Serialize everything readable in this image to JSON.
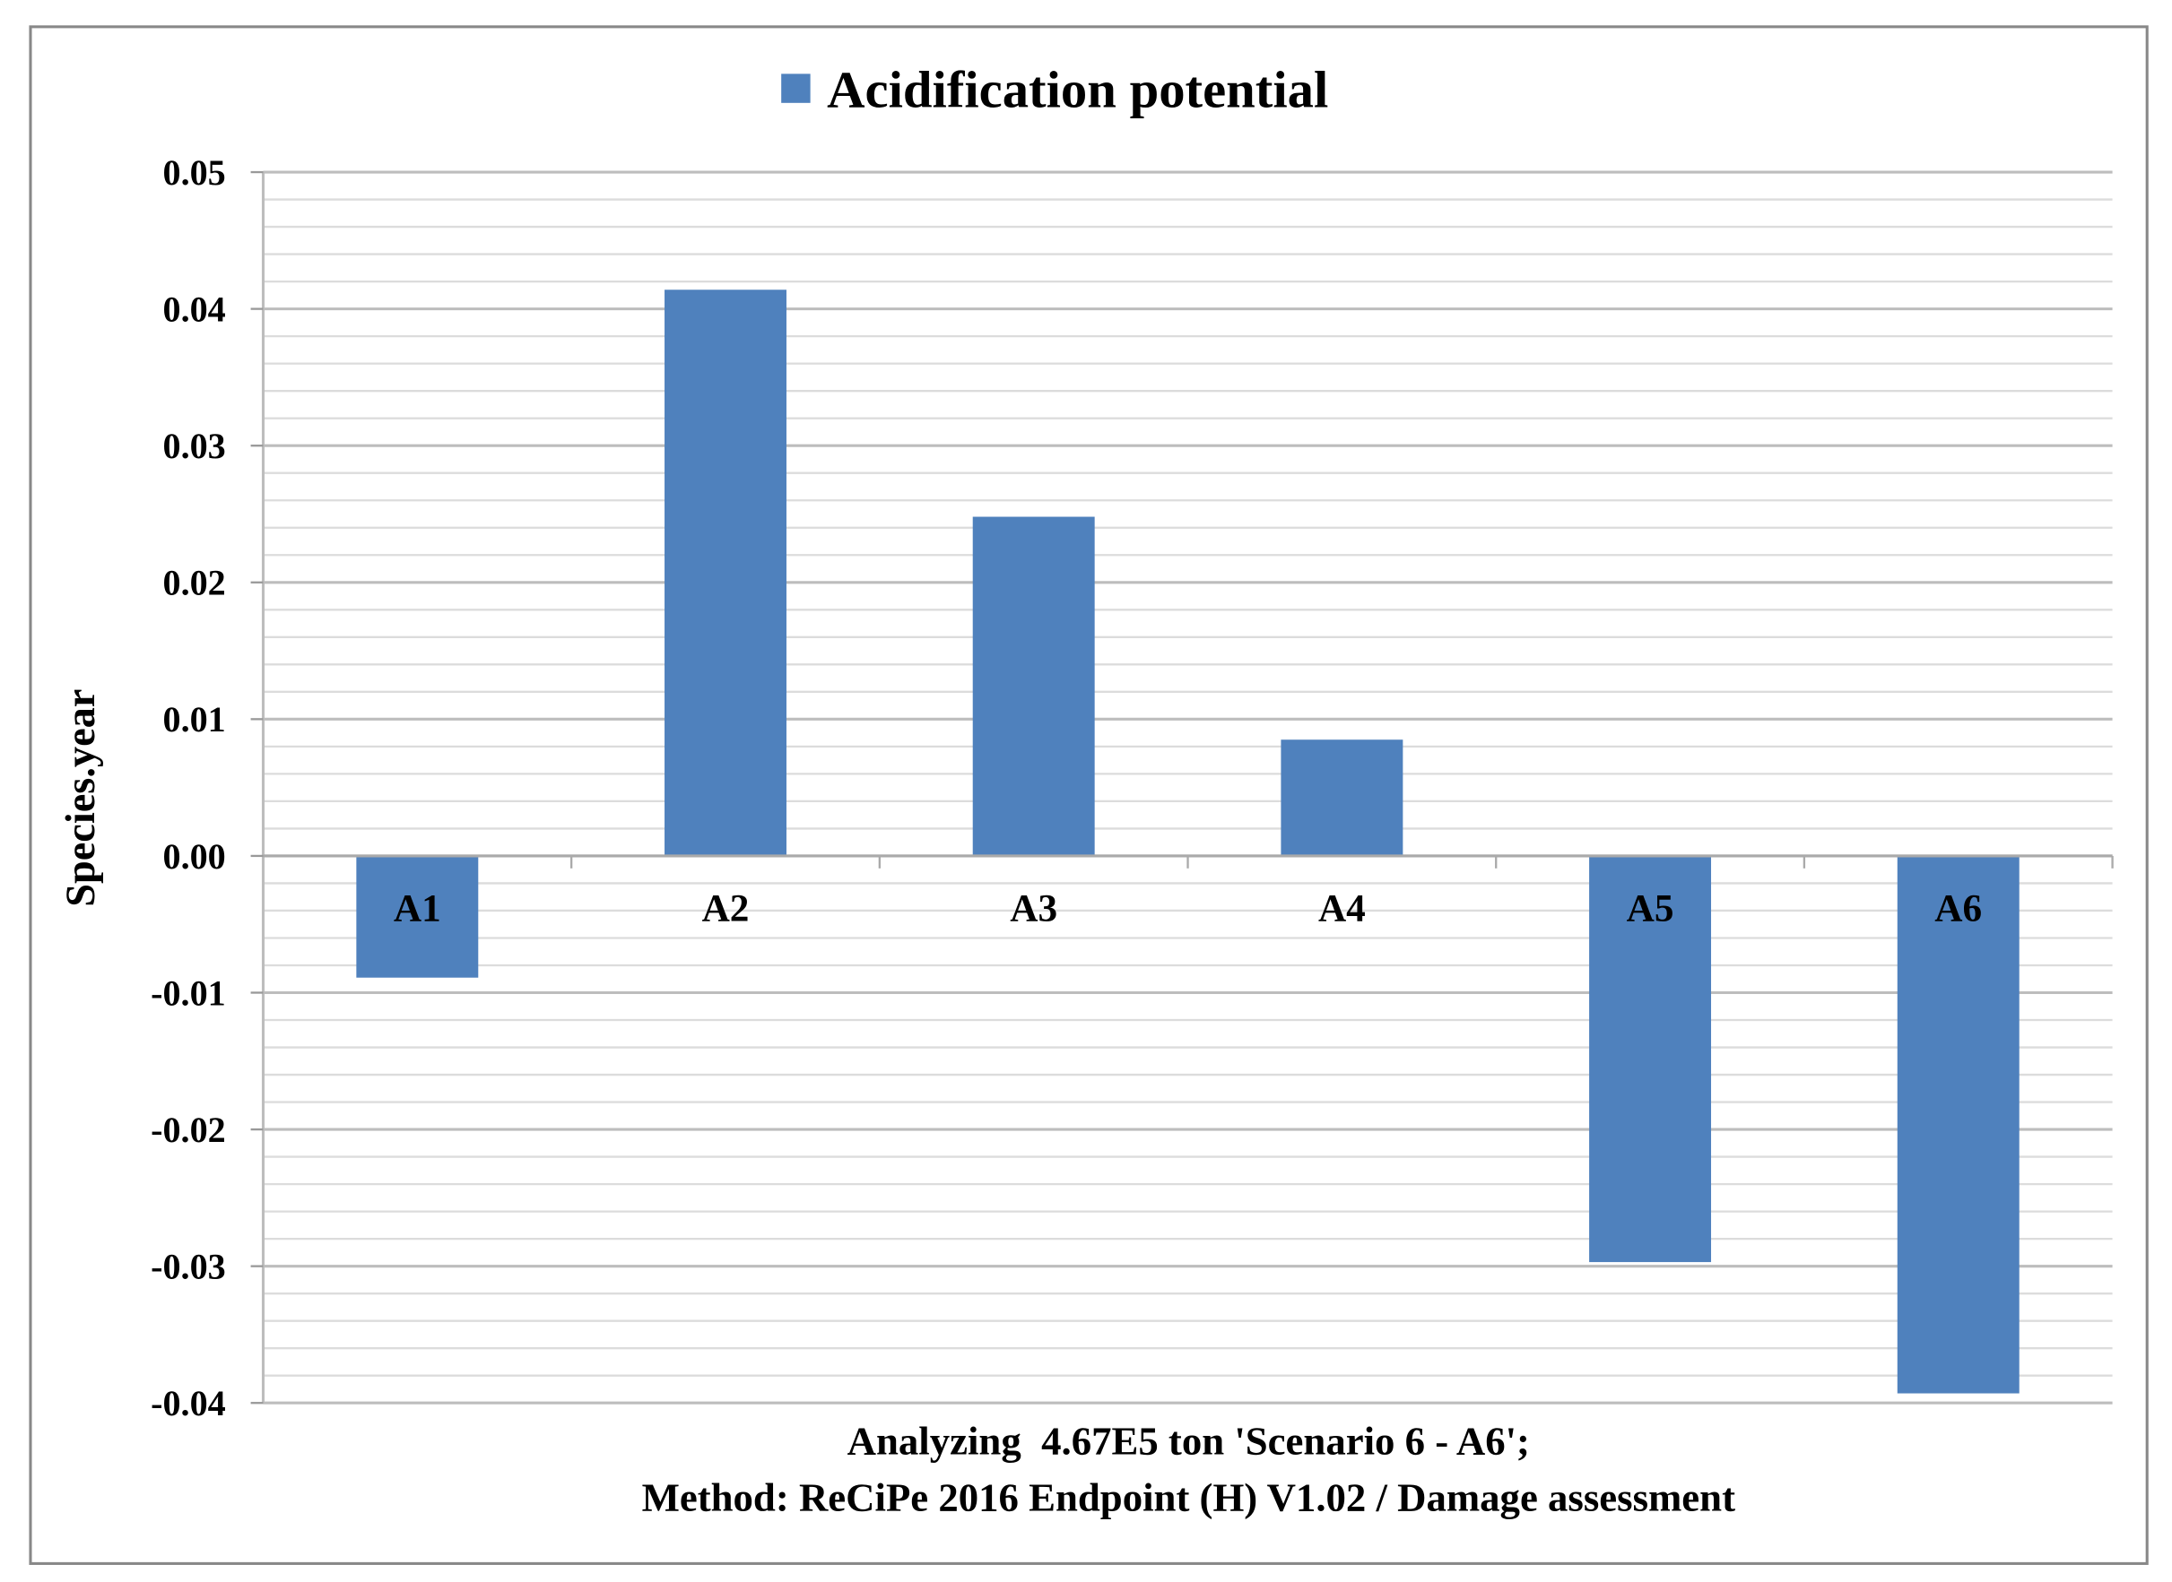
{
  "chart_data": {
    "type": "bar",
    "legend": {
      "entries": [
        "Acidification potential"
      ],
      "position": "top"
    },
    "series": [
      {
        "name": "Acidification potential",
        "values": [
          -0.0089,
          0.0414,
          0.0248,
          0.0085,
          -0.0297,
          -0.0393
        ]
      }
    ],
    "categories": [
      "A1",
      "A2",
      "A3",
      "A4",
      "A5",
      "A6"
    ],
    "ylabel": "Species.year",
    "xlabel_lines": [
      "Analyzing  4.67E5 ton 'Scenario 6 - A6';",
      "Method: ReCiPe 2016 Endpoint (H) V1.02 / Damage assessment"
    ],
    "ylim": [
      -0.04,
      0.05
    ],
    "yticks": [
      "0.05",
      "0.04",
      "0.03",
      "0.02",
      "0.01",
      "0.00",
      "-0.01",
      "-0.02",
      "-0.03",
      "-0.04"
    ],
    "ytick_values": [
      0.05,
      0.04,
      0.03,
      0.02,
      0.01,
      0.0,
      -0.01,
      -0.02,
      -0.03,
      -0.04
    ],
    "minor_gridline_step": 0.002,
    "grid": true,
    "colors": {
      "bar": "#4f81bd",
      "grid": "#c8c8c8",
      "frame": "#888888"
    }
  }
}
